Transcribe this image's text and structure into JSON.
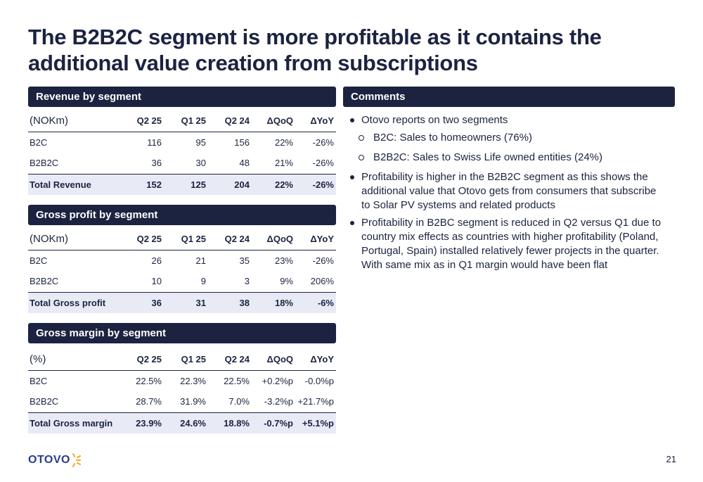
{
  "title": "The B2B2C segment is more profitable as it contains the additional value creation from subscriptions",
  "revenue": {
    "header": "Revenue by segment",
    "columns": [
      "(NOKm)",
      "Q2 25",
      "Q1 25",
      "Q2 24",
      "ΔQoQ",
      "ΔYoY"
    ],
    "rows": [
      [
        "B2C",
        "116",
        "95",
        "156",
        "22%",
        "-26%"
      ],
      [
        "B2B2C",
        "36",
        "30",
        "48",
        "21%",
        "-26%"
      ]
    ],
    "total": [
      "Total Revenue",
      "152",
      "125",
      "204",
      "22%",
      "-26%"
    ]
  },
  "gross_profit": {
    "header": "Gross profit by segment",
    "columns": [
      "(NOKm)",
      "Q2 25",
      "Q1 25",
      "Q2 24",
      "ΔQoQ",
      "ΔYoY"
    ],
    "rows": [
      [
        "B2C",
        "26",
        "21",
        "35",
        "23%",
        "-26%"
      ],
      [
        "B2B2C",
        "10",
        "9",
        "3",
        "9%",
        "206%"
      ]
    ],
    "total": [
      "Total Gross profit",
      "36",
      "31",
      "38",
      "18%",
      "-6%"
    ]
  },
  "gross_margin": {
    "header": "Gross margin by segment",
    "columns": [
      "(%)",
      "Q2 25",
      "Q1 25",
      "Q2 24",
      "ΔQoQ",
      "ΔYoY"
    ],
    "rows": [
      [
        "B2C",
        "22.5%",
        "22.3%",
        "22.5%",
        "+0.2%p",
        "-0.0%p"
      ],
      [
        "B2B2C",
        "28.7%",
        "31.9%",
        "7.0%",
        "-3.2%p",
        "+21.7%p"
      ]
    ],
    "total": [
      "Total Gross margin",
      "23.9%",
      "24.6%",
      "18.8%",
      "-0.7%p",
      "+5.1%p"
    ]
  },
  "comments": {
    "header": "Comments",
    "items": [
      {
        "level": 1,
        "text": "Otovo reports on two segments"
      },
      {
        "level": 2,
        "text": "B2C: Sales to homeowners (76%)"
      },
      {
        "level": 2,
        "text": "B2B2C: Sales to Swiss Life owned entities (24%)"
      },
      {
        "level": 1,
        "text": "Profitability is higher in the B2B2C segment as this shows the additional value that Otovo gets from consumers that subscribe to Solar PV systems and related products"
      },
      {
        "level": 1,
        "text": "Profitability in B2BC segment is reduced in Q2 versus Q1 due to country mix effects as countries with higher profitability (Poland, Portugal, Spain) installed relatively fewer projects in the quarter. With same mix as in Q1 margin would have been flat"
      }
    ]
  },
  "logo": {
    "text": "OTOVO",
    "brand_color": "#2a3a8f",
    "accent_color": "#f5a623"
  },
  "page_number": "21",
  "colors": {
    "navy": "#1c2340",
    "total_row_bg": "#e8eaf6"
  }
}
